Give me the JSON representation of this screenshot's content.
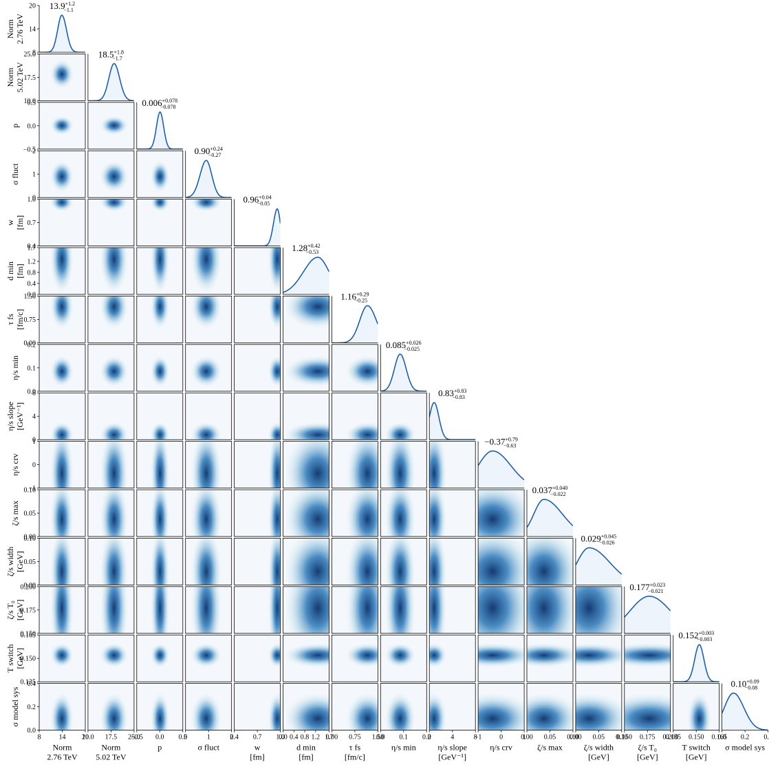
{
  "chart_data": {
    "type": "corner",
    "color": "#1f5fa6",
    "params": [
      {
        "label": [
          "Norm",
          "2.76 TeV"
        ],
        "lim": [
          8,
          20
        ],
        "ticks": [
          8,
          14,
          20
        ],
        "median": 13.9,
        "plus": {
          "value": 1.2,
          "label": "+1.2"
        },
        "minus": {
          "value": 1.1,
          "label": "−1.1"
        }
      },
      {
        "label": [
          "Norm",
          "5.02 TeV"
        ],
        "lim": [
          10,
          25
        ],
        "ticks": [
          {
            "value": 10,
            "label": "10.0"
          },
          17.5,
          {
            "value": 25,
            "label": "25.0"
          }
        ],
        "median": 18.5,
        "plus": {
          "value": 1.8,
          "label": "+1.8"
        },
        "minus": {
          "value": 1.7,
          "label": "−1.7"
        }
      },
      {
        "label": [
          "p"
        ],
        "lim": [
          -0.5,
          0.5
        ],
        "ticks": [
          {
            "value": -0.5,
            "label": "−0.5"
          },
          {
            "value": 0,
            "label": "0.0"
          },
          0.5
        ],
        "median": 0.006,
        "plus": {
          "value": 0.078,
          "label": "+0.078"
        },
        "minus": {
          "value": 0.078,
          "label": "−0.078"
        }
      },
      {
        "label": [
          "σ fluct"
        ],
        "lim": [
          0,
          2
        ],
        "ticks": [
          0,
          1,
          2
        ],
        "median": {
          "value": 0.9,
          "label": "0.90"
        },
        "plus": {
          "value": 0.24,
          "label": "+0.24"
        },
        "minus": {
          "value": 0.27,
          "label": "−0.27"
        }
      },
      {
        "label": [
          "w",
          "[fm]"
        ],
        "lim": [
          0.4,
          1.0
        ],
        "ticks": [
          0.4,
          0.7,
          {
            "value": 1,
            "label": "1.0"
          }
        ],
        "median": 0.96,
        "plus": {
          "value": 0.04,
          "label": "+0.04"
        },
        "minus": {
          "value": 0.05,
          "label": "−0.05"
        }
      },
      {
        "label": [
          "d min",
          "[fm]"
        ],
        "lim": [
          0,
          1.7
        ],
        "ticks": [
          {
            "value": 0,
            "label": "0.0"
          },
          0.4,
          0.8,
          1.2,
          1.7
        ],
        "median": 1.28,
        "plus": {
          "value": 0.42,
          "label": "+0.42"
        },
        "minus": {
          "value": 0.53,
          "label": "−0.53"
        }
      },
      {
        "label": [
          "τ fs",
          "[fm/c]"
        ],
        "lim": [
          0,
          1.5
        ],
        "ticks": [
          {
            "value": 0,
            "label": "0.00"
          },
          0.75,
          {
            "value": 1.5,
            "label": "1.50"
          }
        ],
        "median": 1.16,
        "plus": {
          "value": 0.29,
          "label": "+0.29"
        },
        "minus": {
          "value": 0.25,
          "label": "−0.25"
        }
      },
      {
        "label": [
          "η/s min"
        ],
        "lim": [
          0,
          0.2
        ],
        "ticks": [
          {
            "value": 0,
            "label": "0.0"
          },
          0.1,
          0.2
        ],
        "median": 0.085,
        "plus": {
          "value": 0.026,
          "label": "+0.026"
        },
        "minus": {
          "value": 0.025,
          "label": "−0.025"
        }
      },
      {
        "label": [
          "η/s slope",
          "[GeV⁻¹]"
        ],
        "lim": [
          0,
          8
        ],
        "ticks": [
          0,
          4,
          8
        ],
        "median": 0.83,
        "plus": {
          "value": 0.83,
          "label": "+0.83"
        },
        "minus": {
          "value": 0.83,
          "label": "−0.83"
        }
      },
      {
        "label": [
          "η/s crv"
        ],
        "lim": [
          -1,
          1
        ],
        "ticks": [
          {
            "value": -1,
            "label": "−1"
          },
          0,
          1
        ],
        "median": {
          "value": -0.37,
          "label": "−0.37"
        },
        "plus": {
          "value": 0.79,
          "label": "+0.79"
        },
        "minus": {
          "value": 0.63,
          "label": "−0.63"
        }
      },
      {
        "label": [
          "ζ/s max"
        ],
        "lim": [
          0,
          0.1
        ],
        "ticks": [
          {
            "value": 0,
            "label": "0.00"
          },
          0.05,
          {
            "value": 0.1,
            "label": "0.10"
          }
        ],
        "median": 0.037,
        "plus": {
          "value": 0.04,
          "label": "+0.040"
        },
        "minus": {
          "value": 0.022,
          "label": "−0.022"
        }
      },
      {
        "label": [
          "ζ/s width",
          "[GeV]"
        ],
        "lim": [
          0,
          0.1
        ],
        "ticks": [
          {
            "value": 0,
            "label": "0.00"
          },
          0.05,
          {
            "value": 0.1,
            "label": "0.10"
          }
        ],
        "median": 0.029,
        "plus": {
          "value": 0.045,
          "label": "+0.045"
        },
        "minus": {
          "value": 0.026,
          "label": "−0.026"
        }
      },
      {
        "label": [
          "ζ/s T₀",
          "[GeV]"
        ],
        "lim": [
          0.15,
          0.2
        ],
        "ticks": [
          {
            "value": 0.15,
            "label": "0.150"
          },
          0.175,
          {
            "value": 0.2,
            "label": "0.200"
          }
        ],
        "median": 0.177,
        "plus": {
          "value": 0.023,
          "label": "+0.023"
        },
        "minus": {
          "value": 0.021,
          "label": "−0.021"
        }
      },
      {
        "label": [
          "T switch",
          "[GeV]"
        ],
        "lim": [
          0.135,
          0.165
        ],
        "ticks": [
          0.135,
          {
            "value": 0.15,
            "label": "0.150"
          },
          0.165
        ],
        "median": 0.152,
        "plus": {
          "value": 0.003,
          "label": "+0.003"
        },
        "minus": {
          "value": 0.003,
          "label": "−0.003"
        }
      },
      {
        "label": [
          "σ model sys"
        ],
        "lim": [
          0,
          0.4
        ],
        "ticks": [
          {
            "value": 0,
            "label": "0.0"
          },
          0.2,
          0.4
        ],
        "median": {
          "value": 0.1,
          "label": "0.10"
        },
        "plus": {
          "value": 0.09,
          "label": "+0.09"
        },
        "minus": {
          "value": 0.08,
          "label": "−0.08"
        }
      }
    ]
  }
}
